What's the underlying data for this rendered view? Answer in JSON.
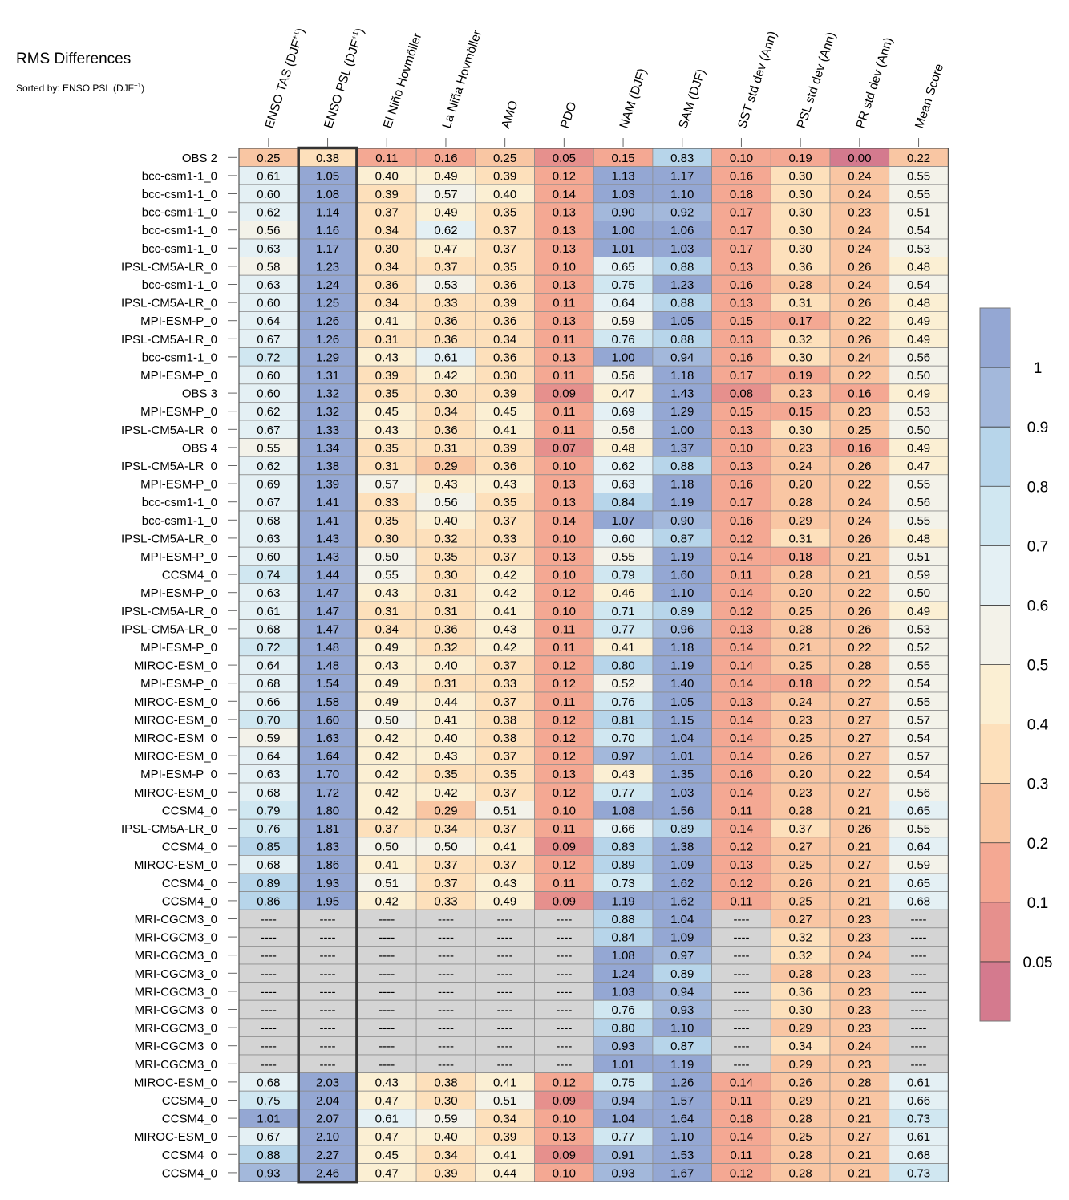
{
  "chart_data": {
    "type": "heatmap",
    "title": "RMS Differences",
    "subtitle": "Sorted by: ENSO PSL (DJF",
    "subtitle_sup": "+1",
    "subtitle_close": ")",
    "columns": [
      {
        "label": "ENSO TAS (DJF",
        "sup": "+1",
        "close": ")"
      },
      {
        "label": "ENSO PSL (DJF",
        "sup": "+1",
        "close": ")"
      },
      {
        "label": "El Niño Hovmöller"
      },
      {
        "label": "La Niña Hovmöller"
      },
      {
        "label": "AMO"
      },
      {
        "label": "PDO"
      },
      {
        "label": "NAM (DJF)"
      },
      {
        "label": "SAM (DJF)"
      },
      {
        "label": "SST std dev (Ann)"
      },
      {
        "label": "PSL std dev (Ann)"
      },
      {
        "label": "PR std dev (Ann)"
      },
      {
        "label": "Mean Score"
      }
    ],
    "sorted_column_index": 1,
    "missing_label": "----",
    "rows": [
      {
        "name": "OBS 2",
        "values": [
          "0.25",
          "0.38",
          "0.11",
          "0.16",
          "0.25",
          "0.05",
          "0.15",
          "0.83",
          "0.10",
          "0.19",
          "0.00",
          "0.22"
        ]
      },
      {
        "name": "bcc-csm1-1_0",
        "values": [
          "0.61",
          "1.05",
          "0.40",
          "0.49",
          "0.39",
          "0.12",
          "1.13",
          "1.17",
          "0.16",
          "0.30",
          "0.24",
          "0.55"
        ]
      },
      {
        "name": "bcc-csm1-1_0",
        "values": [
          "0.60",
          "1.08",
          "0.39",
          "0.57",
          "0.40",
          "0.14",
          "1.03",
          "1.10",
          "0.18",
          "0.30",
          "0.24",
          "0.55"
        ]
      },
      {
        "name": "bcc-csm1-1_0",
        "values": [
          "0.62",
          "1.14",
          "0.37",
          "0.49",
          "0.35",
          "0.13",
          "0.90",
          "0.92",
          "0.17",
          "0.30",
          "0.23",
          "0.51"
        ]
      },
      {
        "name": "bcc-csm1-1_0",
        "values": [
          "0.56",
          "1.16",
          "0.34",
          "0.62",
          "0.37",
          "0.13",
          "1.00",
          "1.06",
          "0.17",
          "0.30",
          "0.24",
          "0.54"
        ]
      },
      {
        "name": "bcc-csm1-1_0",
        "values": [
          "0.63",
          "1.17",
          "0.30",
          "0.47",
          "0.37",
          "0.13",
          "1.01",
          "1.03",
          "0.17",
          "0.30",
          "0.24",
          "0.53"
        ]
      },
      {
        "name": "IPSL-CM5A-LR_0",
        "values": [
          "0.58",
          "1.23",
          "0.34",
          "0.37",
          "0.35",
          "0.10",
          "0.65",
          "0.88",
          "0.13",
          "0.36",
          "0.26",
          "0.48"
        ]
      },
      {
        "name": "bcc-csm1-1_0",
        "values": [
          "0.63",
          "1.24",
          "0.36",
          "0.53",
          "0.36",
          "0.13",
          "0.75",
          "1.23",
          "0.16",
          "0.28",
          "0.24",
          "0.54"
        ]
      },
      {
        "name": "IPSL-CM5A-LR_0",
        "values": [
          "0.60",
          "1.25",
          "0.34",
          "0.33",
          "0.39",
          "0.11",
          "0.64",
          "0.88",
          "0.13",
          "0.31",
          "0.26",
          "0.48"
        ]
      },
      {
        "name": "MPI-ESM-P_0",
        "values": [
          "0.64",
          "1.26",
          "0.41",
          "0.36",
          "0.36",
          "0.13",
          "0.59",
          "1.05",
          "0.15",
          "0.17",
          "0.22",
          "0.49"
        ]
      },
      {
        "name": "IPSL-CM5A-LR_0",
        "values": [
          "0.67",
          "1.26",
          "0.31",
          "0.36",
          "0.34",
          "0.11",
          "0.76",
          "0.88",
          "0.13",
          "0.32",
          "0.26",
          "0.49"
        ]
      },
      {
        "name": "bcc-csm1-1_0",
        "values": [
          "0.72",
          "1.29",
          "0.43",
          "0.61",
          "0.36",
          "0.13",
          "1.00",
          "0.94",
          "0.16",
          "0.30",
          "0.24",
          "0.56"
        ]
      },
      {
        "name": "MPI-ESM-P_0",
        "values": [
          "0.60",
          "1.31",
          "0.39",
          "0.42",
          "0.30",
          "0.11",
          "0.56",
          "1.18",
          "0.17",
          "0.19",
          "0.22",
          "0.50"
        ]
      },
      {
        "name": "OBS 3",
        "values": [
          "0.60",
          "1.32",
          "0.35",
          "0.30",
          "0.39",
          "0.09",
          "0.47",
          "1.43",
          "0.08",
          "0.23",
          "0.16",
          "0.49"
        ]
      },
      {
        "name": "MPI-ESM-P_0",
        "values": [
          "0.62",
          "1.32",
          "0.45",
          "0.34",
          "0.45",
          "0.11",
          "0.69",
          "1.29",
          "0.15",
          "0.15",
          "0.23",
          "0.53"
        ]
      },
      {
        "name": "IPSL-CM5A-LR_0",
        "values": [
          "0.67",
          "1.33",
          "0.43",
          "0.36",
          "0.41",
          "0.11",
          "0.56",
          "1.00",
          "0.13",
          "0.30",
          "0.25",
          "0.50"
        ]
      },
      {
        "name": "OBS 4",
        "values": [
          "0.55",
          "1.34",
          "0.35",
          "0.31",
          "0.39",
          "0.07",
          "0.48",
          "1.37",
          "0.10",
          "0.23",
          "0.16",
          "0.49"
        ]
      },
      {
        "name": "IPSL-CM5A-LR_0",
        "values": [
          "0.62",
          "1.38",
          "0.31",
          "0.29",
          "0.36",
          "0.10",
          "0.62",
          "0.88",
          "0.13",
          "0.24",
          "0.26",
          "0.47"
        ]
      },
      {
        "name": "MPI-ESM-P_0",
        "values": [
          "0.69",
          "1.39",
          "0.57",
          "0.43",
          "0.43",
          "0.13",
          "0.63",
          "1.18",
          "0.16",
          "0.20",
          "0.22",
          "0.55"
        ]
      },
      {
        "name": "bcc-csm1-1_0",
        "values": [
          "0.67",
          "1.41",
          "0.33",
          "0.56",
          "0.35",
          "0.13",
          "0.84",
          "1.19",
          "0.17",
          "0.28",
          "0.24",
          "0.56"
        ]
      },
      {
        "name": "bcc-csm1-1_0",
        "values": [
          "0.68",
          "1.41",
          "0.35",
          "0.40",
          "0.37",
          "0.14",
          "1.07",
          "0.90",
          "0.16",
          "0.29",
          "0.24",
          "0.55"
        ]
      },
      {
        "name": "IPSL-CM5A-LR_0",
        "values": [
          "0.63",
          "1.43",
          "0.30",
          "0.32",
          "0.33",
          "0.10",
          "0.60",
          "0.87",
          "0.12",
          "0.31",
          "0.26",
          "0.48"
        ]
      },
      {
        "name": "MPI-ESM-P_0",
        "values": [
          "0.60",
          "1.43",
          "0.50",
          "0.35",
          "0.37",
          "0.13",
          "0.55",
          "1.19",
          "0.14",
          "0.18",
          "0.21",
          "0.51"
        ]
      },
      {
        "name": "CCSM4_0",
        "values": [
          "0.74",
          "1.44",
          "0.55",
          "0.30",
          "0.42",
          "0.10",
          "0.79",
          "1.60",
          "0.11",
          "0.28",
          "0.21",
          "0.59"
        ]
      },
      {
        "name": "MPI-ESM-P_0",
        "values": [
          "0.63",
          "1.47",
          "0.43",
          "0.31",
          "0.42",
          "0.12",
          "0.46",
          "1.10",
          "0.14",
          "0.20",
          "0.22",
          "0.50"
        ]
      },
      {
        "name": "IPSL-CM5A-LR_0",
        "values": [
          "0.61",
          "1.47",
          "0.31",
          "0.31",
          "0.41",
          "0.10",
          "0.71",
          "0.89",
          "0.12",
          "0.25",
          "0.26",
          "0.49"
        ]
      },
      {
        "name": "IPSL-CM5A-LR_0",
        "values": [
          "0.68",
          "1.47",
          "0.34",
          "0.36",
          "0.43",
          "0.11",
          "0.77",
          "0.96",
          "0.13",
          "0.28",
          "0.26",
          "0.53"
        ]
      },
      {
        "name": "MPI-ESM-P_0",
        "values": [
          "0.72",
          "1.48",
          "0.49",
          "0.32",
          "0.42",
          "0.11",
          "0.41",
          "1.18",
          "0.14",
          "0.21",
          "0.22",
          "0.52"
        ]
      },
      {
        "name": "MIROC-ESM_0",
        "values": [
          "0.64",
          "1.48",
          "0.43",
          "0.40",
          "0.37",
          "0.12",
          "0.80",
          "1.19",
          "0.14",
          "0.25",
          "0.28",
          "0.55"
        ]
      },
      {
        "name": "MPI-ESM-P_0",
        "values": [
          "0.68",
          "1.54",
          "0.49",
          "0.31",
          "0.33",
          "0.12",
          "0.52",
          "1.40",
          "0.14",
          "0.18",
          "0.22",
          "0.54"
        ]
      },
      {
        "name": "MIROC-ESM_0",
        "values": [
          "0.66",
          "1.58",
          "0.49",
          "0.44",
          "0.37",
          "0.11",
          "0.76",
          "1.05",
          "0.13",
          "0.24",
          "0.27",
          "0.55"
        ]
      },
      {
        "name": "MIROC-ESM_0",
        "values": [
          "0.70",
          "1.60",
          "0.50",
          "0.41",
          "0.38",
          "0.12",
          "0.81",
          "1.15",
          "0.14",
          "0.23",
          "0.27",
          "0.57"
        ]
      },
      {
        "name": "MIROC-ESM_0",
        "values": [
          "0.59",
          "1.63",
          "0.42",
          "0.40",
          "0.38",
          "0.12",
          "0.70",
          "1.04",
          "0.14",
          "0.25",
          "0.27",
          "0.54"
        ]
      },
      {
        "name": "MIROC-ESM_0",
        "values": [
          "0.64",
          "1.64",
          "0.42",
          "0.43",
          "0.37",
          "0.12",
          "0.97",
          "1.01",
          "0.14",
          "0.26",
          "0.27",
          "0.57"
        ]
      },
      {
        "name": "MPI-ESM-P_0",
        "values": [
          "0.63",
          "1.70",
          "0.42",
          "0.35",
          "0.35",
          "0.13",
          "0.43",
          "1.35",
          "0.16",
          "0.20",
          "0.22",
          "0.54"
        ]
      },
      {
        "name": "MIROC-ESM_0",
        "values": [
          "0.68",
          "1.72",
          "0.42",
          "0.42",
          "0.37",
          "0.12",
          "0.77",
          "1.03",
          "0.14",
          "0.23",
          "0.27",
          "0.56"
        ]
      },
      {
        "name": "CCSM4_0",
        "values": [
          "0.79",
          "1.80",
          "0.42",
          "0.29",
          "0.51",
          "0.10",
          "1.08",
          "1.56",
          "0.11",
          "0.28",
          "0.21",
          "0.65"
        ]
      },
      {
        "name": "IPSL-CM5A-LR_0",
        "values": [
          "0.76",
          "1.81",
          "0.37",
          "0.34",
          "0.37",
          "0.11",
          "0.66",
          "0.89",
          "0.14",
          "0.37",
          "0.26",
          "0.55"
        ]
      },
      {
        "name": "CCSM4_0",
        "values": [
          "0.85",
          "1.83",
          "0.50",
          "0.50",
          "0.41",
          "0.09",
          "0.83",
          "1.38",
          "0.12",
          "0.27",
          "0.21",
          "0.64"
        ]
      },
      {
        "name": "MIROC-ESM_0",
        "values": [
          "0.68",
          "1.86",
          "0.41",
          "0.37",
          "0.37",
          "0.12",
          "0.89",
          "1.09",
          "0.13",
          "0.25",
          "0.27",
          "0.59"
        ]
      },
      {
        "name": "CCSM4_0",
        "values": [
          "0.89",
          "1.93",
          "0.51",
          "0.37",
          "0.43",
          "0.11",
          "0.73",
          "1.62",
          "0.12",
          "0.26",
          "0.21",
          "0.65"
        ]
      },
      {
        "name": "CCSM4_0",
        "values": [
          "0.86",
          "1.95",
          "0.42",
          "0.33",
          "0.49",
          "0.09",
          "1.19",
          "1.62",
          "0.11",
          "0.25",
          "0.21",
          "0.68"
        ]
      },
      {
        "name": "MRI-CGCM3_0",
        "values": [
          null,
          null,
          null,
          null,
          null,
          null,
          "0.88",
          "1.04",
          null,
          "0.27",
          "0.23",
          null
        ]
      },
      {
        "name": "MRI-CGCM3_0",
        "values": [
          null,
          null,
          null,
          null,
          null,
          null,
          "0.84",
          "1.09",
          null,
          "0.32",
          "0.23",
          null
        ]
      },
      {
        "name": "MRI-CGCM3_0",
        "values": [
          null,
          null,
          null,
          null,
          null,
          null,
          "1.08",
          "0.97",
          null,
          "0.32",
          "0.24",
          null
        ]
      },
      {
        "name": "MRI-CGCM3_0",
        "values": [
          null,
          null,
          null,
          null,
          null,
          null,
          "1.24",
          "0.89",
          null,
          "0.28",
          "0.23",
          null
        ]
      },
      {
        "name": "MRI-CGCM3_0",
        "values": [
          null,
          null,
          null,
          null,
          null,
          null,
          "1.03",
          "0.94",
          null,
          "0.36",
          "0.23",
          null
        ]
      },
      {
        "name": "MRI-CGCM3_0",
        "values": [
          null,
          null,
          null,
          null,
          null,
          null,
          "0.76",
          "0.93",
          null,
          "0.30",
          "0.23",
          null
        ]
      },
      {
        "name": "MRI-CGCM3_0",
        "values": [
          null,
          null,
          null,
          null,
          null,
          null,
          "0.80",
          "1.10",
          null,
          "0.29",
          "0.23",
          null
        ]
      },
      {
        "name": "MRI-CGCM3_0",
        "values": [
          null,
          null,
          null,
          null,
          null,
          null,
          "0.93",
          "0.87",
          null,
          "0.34",
          "0.24",
          null
        ]
      },
      {
        "name": "MRI-CGCM3_0",
        "values": [
          null,
          null,
          null,
          null,
          null,
          null,
          "1.01",
          "1.19",
          null,
          "0.29",
          "0.23",
          null
        ]
      },
      {
        "name": "MIROC-ESM_0",
        "values": [
          "0.68",
          "2.03",
          "0.43",
          "0.38",
          "0.41",
          "0.12",
          "0.75",
          "1.26",
          "0.14",
          "0.26",
          "0.28",
          "0.61"
        ]
      },
      {
        "name": "CCSM4_0",
        "values": [
          "0.75",
          "2.04",
          "0.47",
          "0.30",
          "0.51",
          "0.09",
          "0.94",
          "1.57",
          "0.11",
          "0.29",
          "0.21",
          "0.66"
        ]
      },
      {
        "name": "CCSM4_0",
        "values": [
          "1.01",
          "2.07",
          "0.61",
          "0.59",
          "0.34",
          "0.10",
          "1.04",
          "1.64",
          "0.18",
          "0.28",
          "0.21",
          "0.73"
        ]
      },
      {
        "name": "MIROC-ESM_0",
        "values": [
          "0.67",
          "2.10",
          "0.47",
          "0.40",
          "0.39",
          "0.13",
          "0.77",
          "1.10",
          "0.14",
          "0.25",
          "0.27",
          "0.61"
        ]
      },
      {
        "name": "CCSM4_0",
        "values": [
          "0.88",
          "2.27",
          "0.45",
          "0.34",
          "0.41",
          "0.09",
          "0.91",
          "1.53",
          "0.11",
          "0.28",
          "0.21",
          "0.68"
        ]
      },
      {
        "name": "CCSM4_0",
        "values": [
          "0.93",
          "2.46",
          "0.47",
          "0.39",
          "0.44",
          "0.10",
          "0.93",
          "1.67",
          "0.12",
          "0.28",
          "0.21",
          "0.73"
        ]
      }
    ],
    "colorbar": {
      "levels": [
        0.05,
        0.1,
        0.2,
        0.3,
        0.4,
        0.5,
        0.6,
        0.7,
        0.8,
        0.9,
        1
      ],
      "tick_labels": [
        "0.05",
        "0.1",
        "0.2",
        "0.3",
        "0.4",
        "0.5",
        "0.6",
        "0.7",
        "0.8",
        "0.9",
        "1"
      ],
      "colors_low_to_high": [
        "#d47a8e",
        "#e6908d",
        "#f4a893",
        "#f9c6a3",
        "#fde0bb",
        "#fbefd3",
        "#f3f2e9",
        "#e4f0f4",
        "#d0e7f1",
        "#b7d5ea",
        "#a3b8db",
        "#94a7d3"
      ],
      "missing_color": "#d4d4d4"
    }
  }
}
